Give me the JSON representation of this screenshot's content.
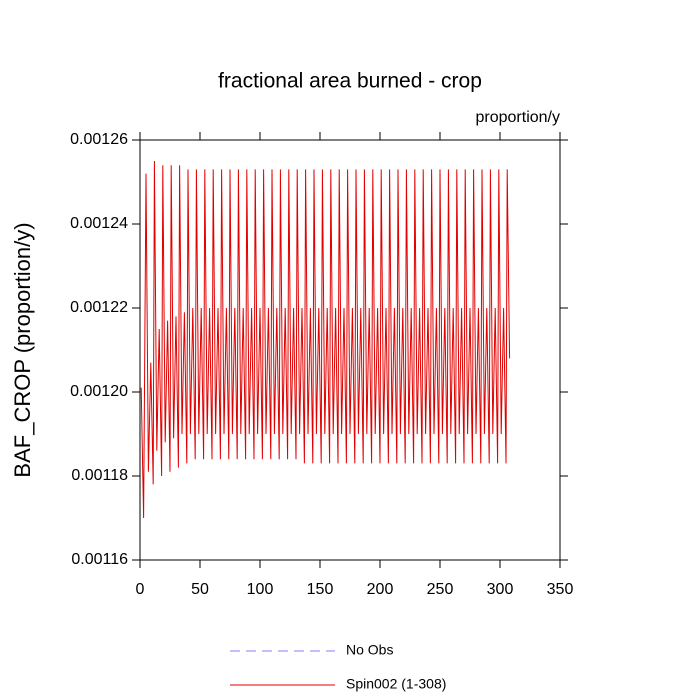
{
  "chart_data": {
    "type": "line",
    "title": "fractional area burned - crop",
    "subtitle": "proportion/y",
    "y_label": "BAF_CROP  (proportion/y)",
    "xlim": [
      0,
      350
    ],
    "xticks": [
      0,
      50,
      100,
      150,
      200,
      250,
      300,
      350
    ],
    "ylim": [
      0.00116,
      0.00126
    ],
    "yticks": [
      0.00116,
      0.00118,
      {
        "value": 0.0012,
        "label": "0.00120"
      },
      0.00122,
      0.00124,
      0.00126
    ],
    "series": [
      {
        "name": "No Obs",
        "color": "#8080ff",
        "dashed": true,
        "x": [],
        "values": []
      },
      {
        "name": "Spin002 (1-308)",
        "color": "#e00000",
        "dashed": false,
        "x": [
          1,
          3,
          5,
          7,
          9,
          11,
          12,
          14,
          16,
          18,
          19,
          21,
          23,
          25,
          26,
          28,
          30,
          32,
          33,
          35,
          37,
          39,
          40,
          42,
          44,
          46,
          47,
          49,
          51,
          53,
          54,
          56,
          58,
          60,
          61,
          63,
          65,
          67,
          68,
          70,
          72,
          74,
          75,
          77,
          79,
          81,
          82,
          84,
          86,
          88,
          89,
          91,
          93,
          95,
          96,
          98,
          100,
          102,
          103,
          105,
          107,
          109,
          110,
          112,
          114,
          116,
          117,
          119,
          121,
          123,
          124,
          126,
          128,
          130,
          131,
          133,
          135,
          137,
          138,
          140,
          142,
          144,
          145,
          147,
          149,
          151,
          152,
          154,
          156,
          158,
          159,
          161,
          163,
          165,
          166,
          168,
          170,
          172,
          173,
          175,
          177,
          179,
          180,
          182,
          184,
          186,
          187,
          189,
          191,
          193,
          194,
          196,
          198,
          200,
          201,
          203,
          205,
          207,
          208,
          210,
          212,
          214,
          215,
          217,
          219,
          221,
          222,
          224,
          226,
          228,
          229,
          231,
          233,
          235,
          236,
          238,
          240,
          242,
          243,
          245,
          247,
          249,
          250,
          252,
          254,
          256,
          257,
          259,
          261,
          263,
          264,
          266,
          268,
          270,
          271,
          273,
          275,
          277,
          278,
          280,
          282,
          284,
          285,
          287,
          289,
          291,
          292,
          294,
          296,
          298,
          299,
          301,
          303,
          305,
          306,
          308
        ],
        "values": [
          0.001201,
          0.00117,
          0.001252,
          0.001181,
          0.001207,
          0.001178,
          0.001255,
          0.001186,
          0.001215,
          0.00118,
          0.001254,
          0.001188,
          0.001217,
          0.001181,
          0.001254,
          0.001189,
          0.001218,
          0.001182,
          0.001254,
          0.00119,
          0.001219,
          0.001183,
          0.001253,
          0.00119,
          0.00122,
          0.001184,
          0.001253,
          0.00119,
          0.00122,
          0.001184,
          0.001253,
          0.00119,
          0.00122,
          0.001184,
          0.001253,
          0.00119,
          0.00122,
          0.001184,
          0.001253,
          0.00119,
          0.00122,
          0.001184,
          0.001253,
          0.00119,
          0.00122,
          0.001184,
          0.001253,
          0.00119,
          0.00122,
          0.001184,
          0.001253,
          0.00119,
          0.00122,
          0.001184,
          0.001253,
          0.00119,
          0.00122,
          0.001184,
          0.001253,
          0.00119,
          0.00122,
          0.001184,
          0.001253,
          0.00119,
          0.00122,
          0.001184,
          0.001253,
          0.00119,
          0.00122,
          0.001184,
          0.001253,
          0.00119,
          0.00122,
          0.001184,
          0.001253,
          0.00119,
          0.00122,
          0.001183,
          0.001253,
          0.00119,
          0.00122,
          0.001183,
          0.001253,
          0.00119,
          0.00122,
          0.001183,
          0.001253,
          0.00119,
          0.00122,
          0.001183,
          0.001253,
          0.00119,
          0.00122,
          0.001183,
          0.001253,
          0.00119,
          0.00122,
          0.001183,
          0.001253,
          0.00119,
          0.00122,
          0.001183,
          0.001253,
          0.00119,
          0.00122,
          0.001183,
          0.001253,
          0.00119,
          0.00122,
          0.001183,
          0.001253,
          0.00119,
          0.00122,
          0.001183,
          0.001253,
          0.00119,
          0.00122,
          0.001183,
          0.001253,
          0.00119,
          0.00122,
          0.001183,
          0.001253,
          0.00119,
          0.00122,
          0.001183,
          0.001253,
          0.00119,
          0.00122,
          0.001183,
          0.001253,
          0.00119,
          0.00122,
          0.001183,
          0.001253,
          0.00119,
          0.00122,
          0.001183,
          0.001253,
          0.00119,
          0.00122,
          0.001183,
          0.001253,
          0.00119,
          0.00122,
          0.001183,
          0.001253,
          0.00119,
          0.00122,
          0.001183,
          0.001253,
          0.00119,
          0.00122,
          0.001183,
          0.001253,
          0.00119,
          0.00122,
          0.001183,
          0.001253,
          0.00119,
          0.00122,
          0.001183,
          0.001253,
          0.00119,
          0.00122,
          0.001183,
          0.001253,
          0.00119,
          0.00122,
          0.001183,
          0.001253,
          0.00119,
          0.00122,
          0.001183,
          0.001253,
          0.001208
        ]
      }
    ]
  }
}
